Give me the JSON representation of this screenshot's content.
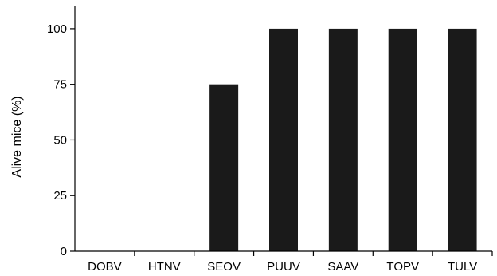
{
  "chart_data": {
    "type": "bar",
    "categories": [
      "DOBV",
      "HTNV",
      "SEOV",
      "PUUV",
      "SAAV",
      "TOPV",
      "TULV"
    ],
    "values": [
      0,
      0,
      75,
      100,
      100,
      100,
      100
    ],
    "title": "",
    "xlabel": "",
    "ylabel": "Alive mice (%)",
    "ylim": [
      0,
      110
    ],
    "yticks": [
      0,
      25,
      50,
      75,
      100
    ],
    "grid": false,
    "bar_color": "#1a1a1a",
    "axis_color": "#000000"
  }
}
